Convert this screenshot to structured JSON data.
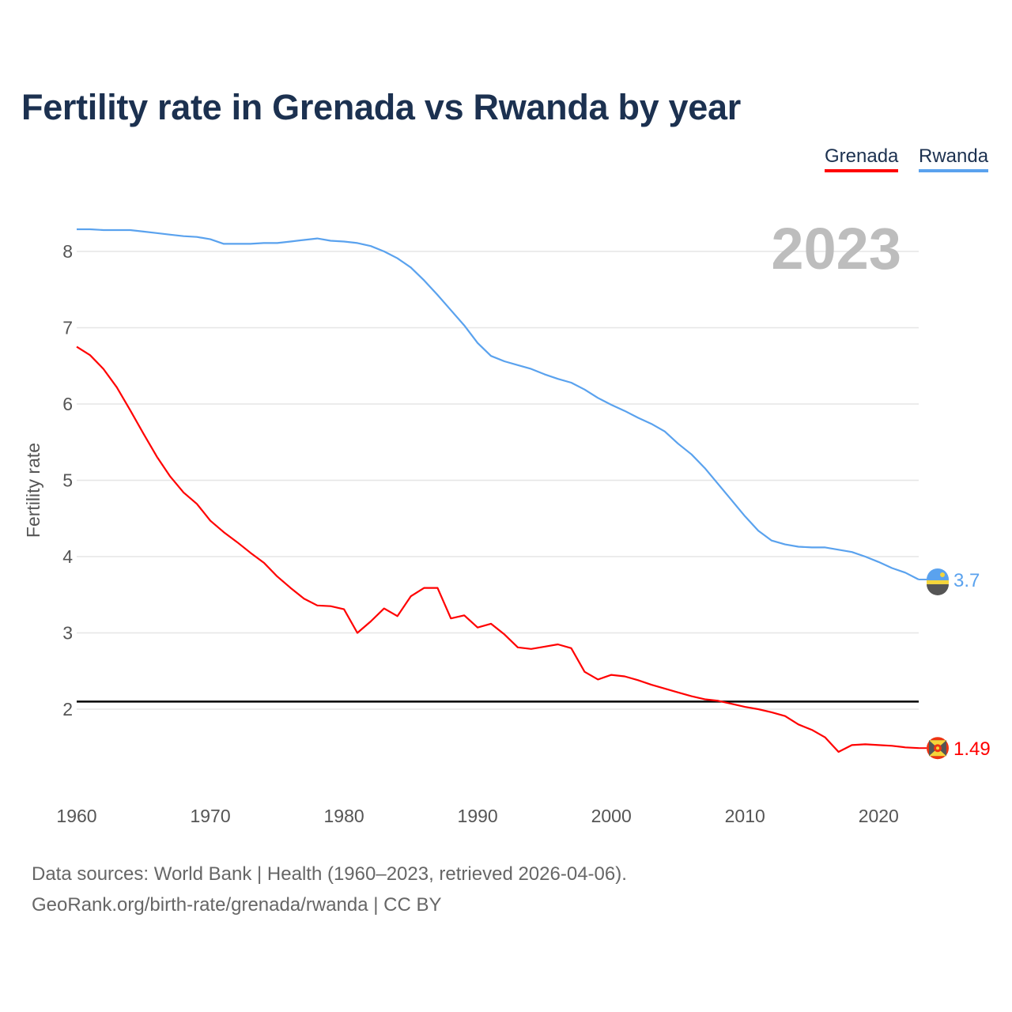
{
  "chart_data": {
    "type": "line",
    "title": "Fertility rate in Grenada vs Rwanda by year",
    "xlabel": "",
    "ylabel": "Fertility rate",
    "xlim": [
      1960,
      2023
    ],
    "ylim": [
      0.9,
      8.6
    ],
    "x_ticks": [
      1960,
      1970,
      1980,
      1990,
      2000,
      2010,
      2020
    ],
    "y_ticks": [
      2,
      3,
      4,
      5,
      6,
      7,
      8
    ],
    "grid": true,
    "legend_position": "top-right",
    "year_label": "2023",
    "reference_line": {
      "value": 2.1,
      "color": "#000000"
    },
    "x": [
      1960,
      1961,
      1962,
      1963,
      1964,
      1965,
      1966,
      1967,
      1968,
      1969,
      1970,
      1971,
      1972,
      1973,
      1974,
      1975,
      1976,
      1977,
      1978,
      1979,
      1980,
      1981,
      1982,
      1983,
      1984,
      1985,
      1986,
      1987,
      1988,
      1989,
      1990,
      1991,
      1992,
      1993,
      1994,
      1995,
      1996,
      1997,
      1998,
      1999,
      2000,
      2001,
      2002,
      2003,
      2004,
      2005,
      2006,
      2007,
      2008,
      2009,
      2010,
      2011,
      2012,
      2013,
      2014,
      2015,
      2016,
      2017,
      2018,
      2019,
      2020,
      2021,
      2022,
      2023
    ],
    "series": [
      {
        "name": "Grenada",
        "color": "#ff0000",
        "end_label": "1.49",
        "values": [
          6.75,
          6.64,
          6.46,
          6.22,
          5.92,
          5.61,
          5.31,
          5.05,
          4.84,
          4.69,
          4.47,
          4.32,
          4.19,
          4.05,
          3.92,
          3.74,
          3.59,
          3.45,
          3.36,
          3.35,
          3.31,
          3.0,
          3.15,
          3.32,
          3.22,
          3.48,
          3.59,
          3.59,
          3.19,
          3.23,
          3.07,
          3.12,
          2.98,
          2.81,
          2.79,
          2.82,
          2.85,
          2.8,
          2.49,
          2.39,
          2.45,
          2.43,
          2.38,
          2.32,
          2.27,
          2.22,
          2.17,
          2.13,
          2.11,
          2.07,
          2.03,
          2.0,
          1.96,
          1.91,
          1.8,
          1.73,
          1.63,
          1.44,
          1.53,
          1.54,
          1.53,
          1.52,
          1.5,
          1.49
        ]
      },
      {
        "name": "Rwanda",
        "color": "#5aa2ee",
        "end_label": "3.7",
        "values": [
          8.29,
          8.29,
          8.28,
          8.28,
          8.28,
          8.26,
          8.24,
          8.22,
          8.2,
          8.19,
          8.16,
          8.1,
          8.1,
          8.1,
          8.11,
          8.11,
          8.13,
          8.15,
          8.17,
          8.14,
          8.13,
          8.11,
          8.07,
          8.0,
          7.91,
          7.79,
          7.62,
          7.43,
          7.23,
          7.03,
          6.8,
          6.63,
          6.56,
          6.51,
          6.46,
          6.39,
          6.33,
          6.28,
          6.19,
          6.08,
          5.99,
          5.91,
          5.82,
          5.74,
          5.64,
          5.48,
          5.34,
          5.16,
          4.95,
          4.74,
          4.53,
          4.34,
          4.21,
          4.16,
          4.13,
          4.12,
          4.12,
          4.09,
          4.06,
          4.0,
          3.93,
          3.85,
          3.79,
          3.7
        ]
      }
    ]
  },
  "source": {
    "line1": "Data sources: World Bank | Health (1960–2023, retrieved 2026-04-06).",
    "line2": "GeoRank.org/birth-rate/grenada/rwanda | CC BY"
  }
}
